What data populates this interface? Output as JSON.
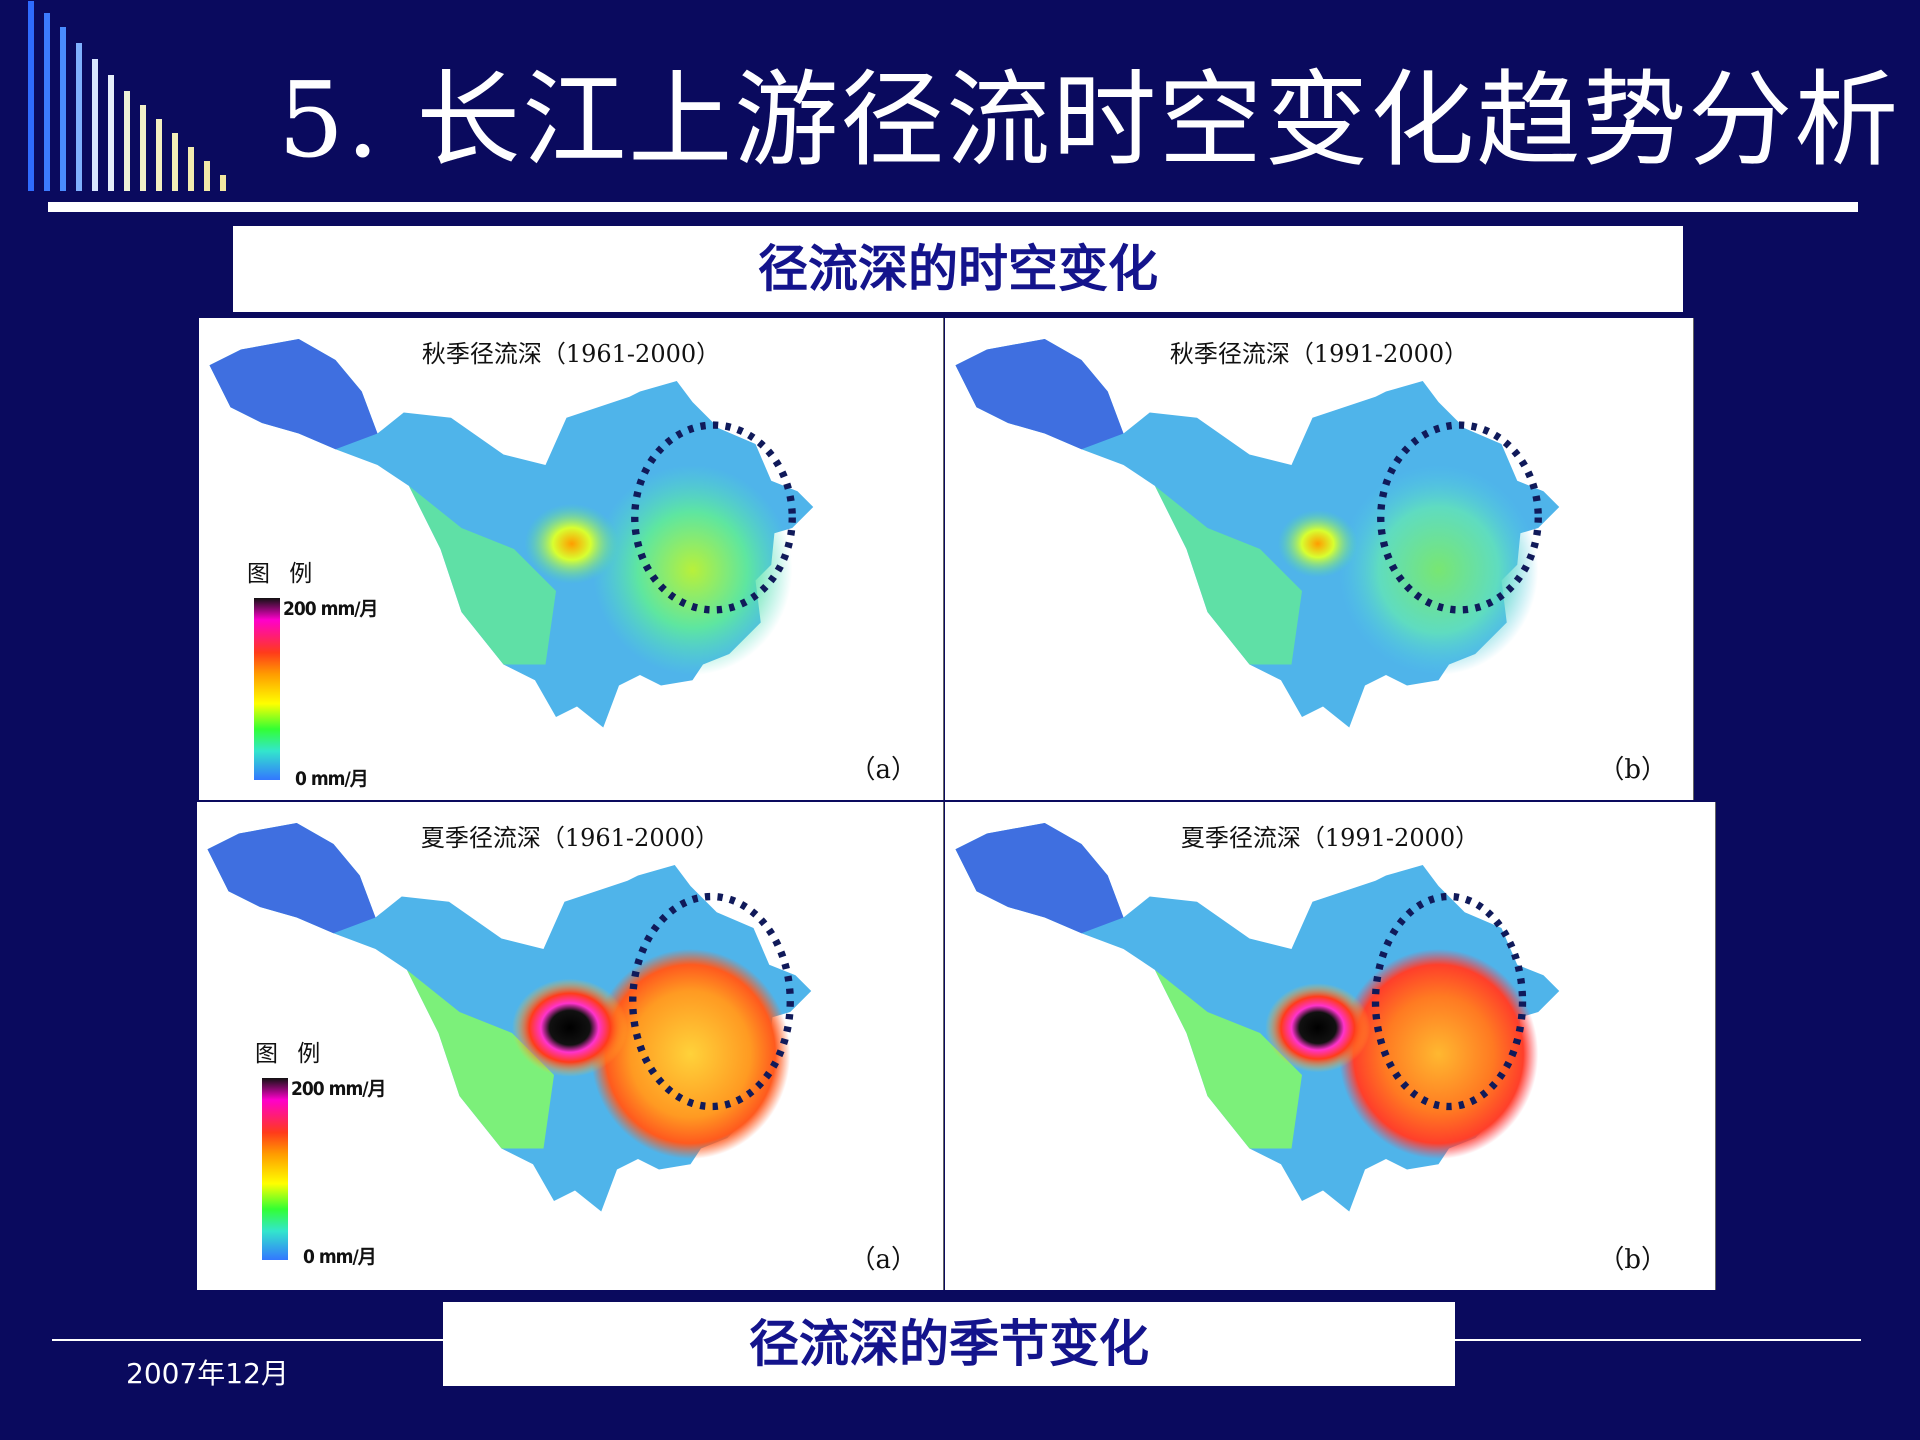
{
  "slide": {
    "title": "5.  长江上游径流时空变化趋势分析",
    "caption_top": "径流深的时空变化",
    "caption_bottom": "径流深的季节变化",
    "footer_date": "2007年12月"
  },
  "panels": [
    {
      "title": "秋季径流深（1961-2000）",
      "label": "（a）",
      "has_legend": true
    },
    {
      "title": "秋季径流深（1991-2000）",
      "label": "（b）",
      "has_legend": false
    },
    {
      "title": "夏季径流深（1961-2000）",
      "label": "（a）",
      "has_legend": true
    },
    {
      "title": "夏季径流深（1991-2000）",
      "label": "（b）",
      "has_legend": false
    }
  ],
  "legend": {
    "title": "图 例",
    "max": "200 mm/月",
    "min": "0 mm/月"
  },
  "colors": {
    "background": "#0a0a5e",
    "caption_text": "#14148c",
    "circle": "#101a5a"
  }
}
